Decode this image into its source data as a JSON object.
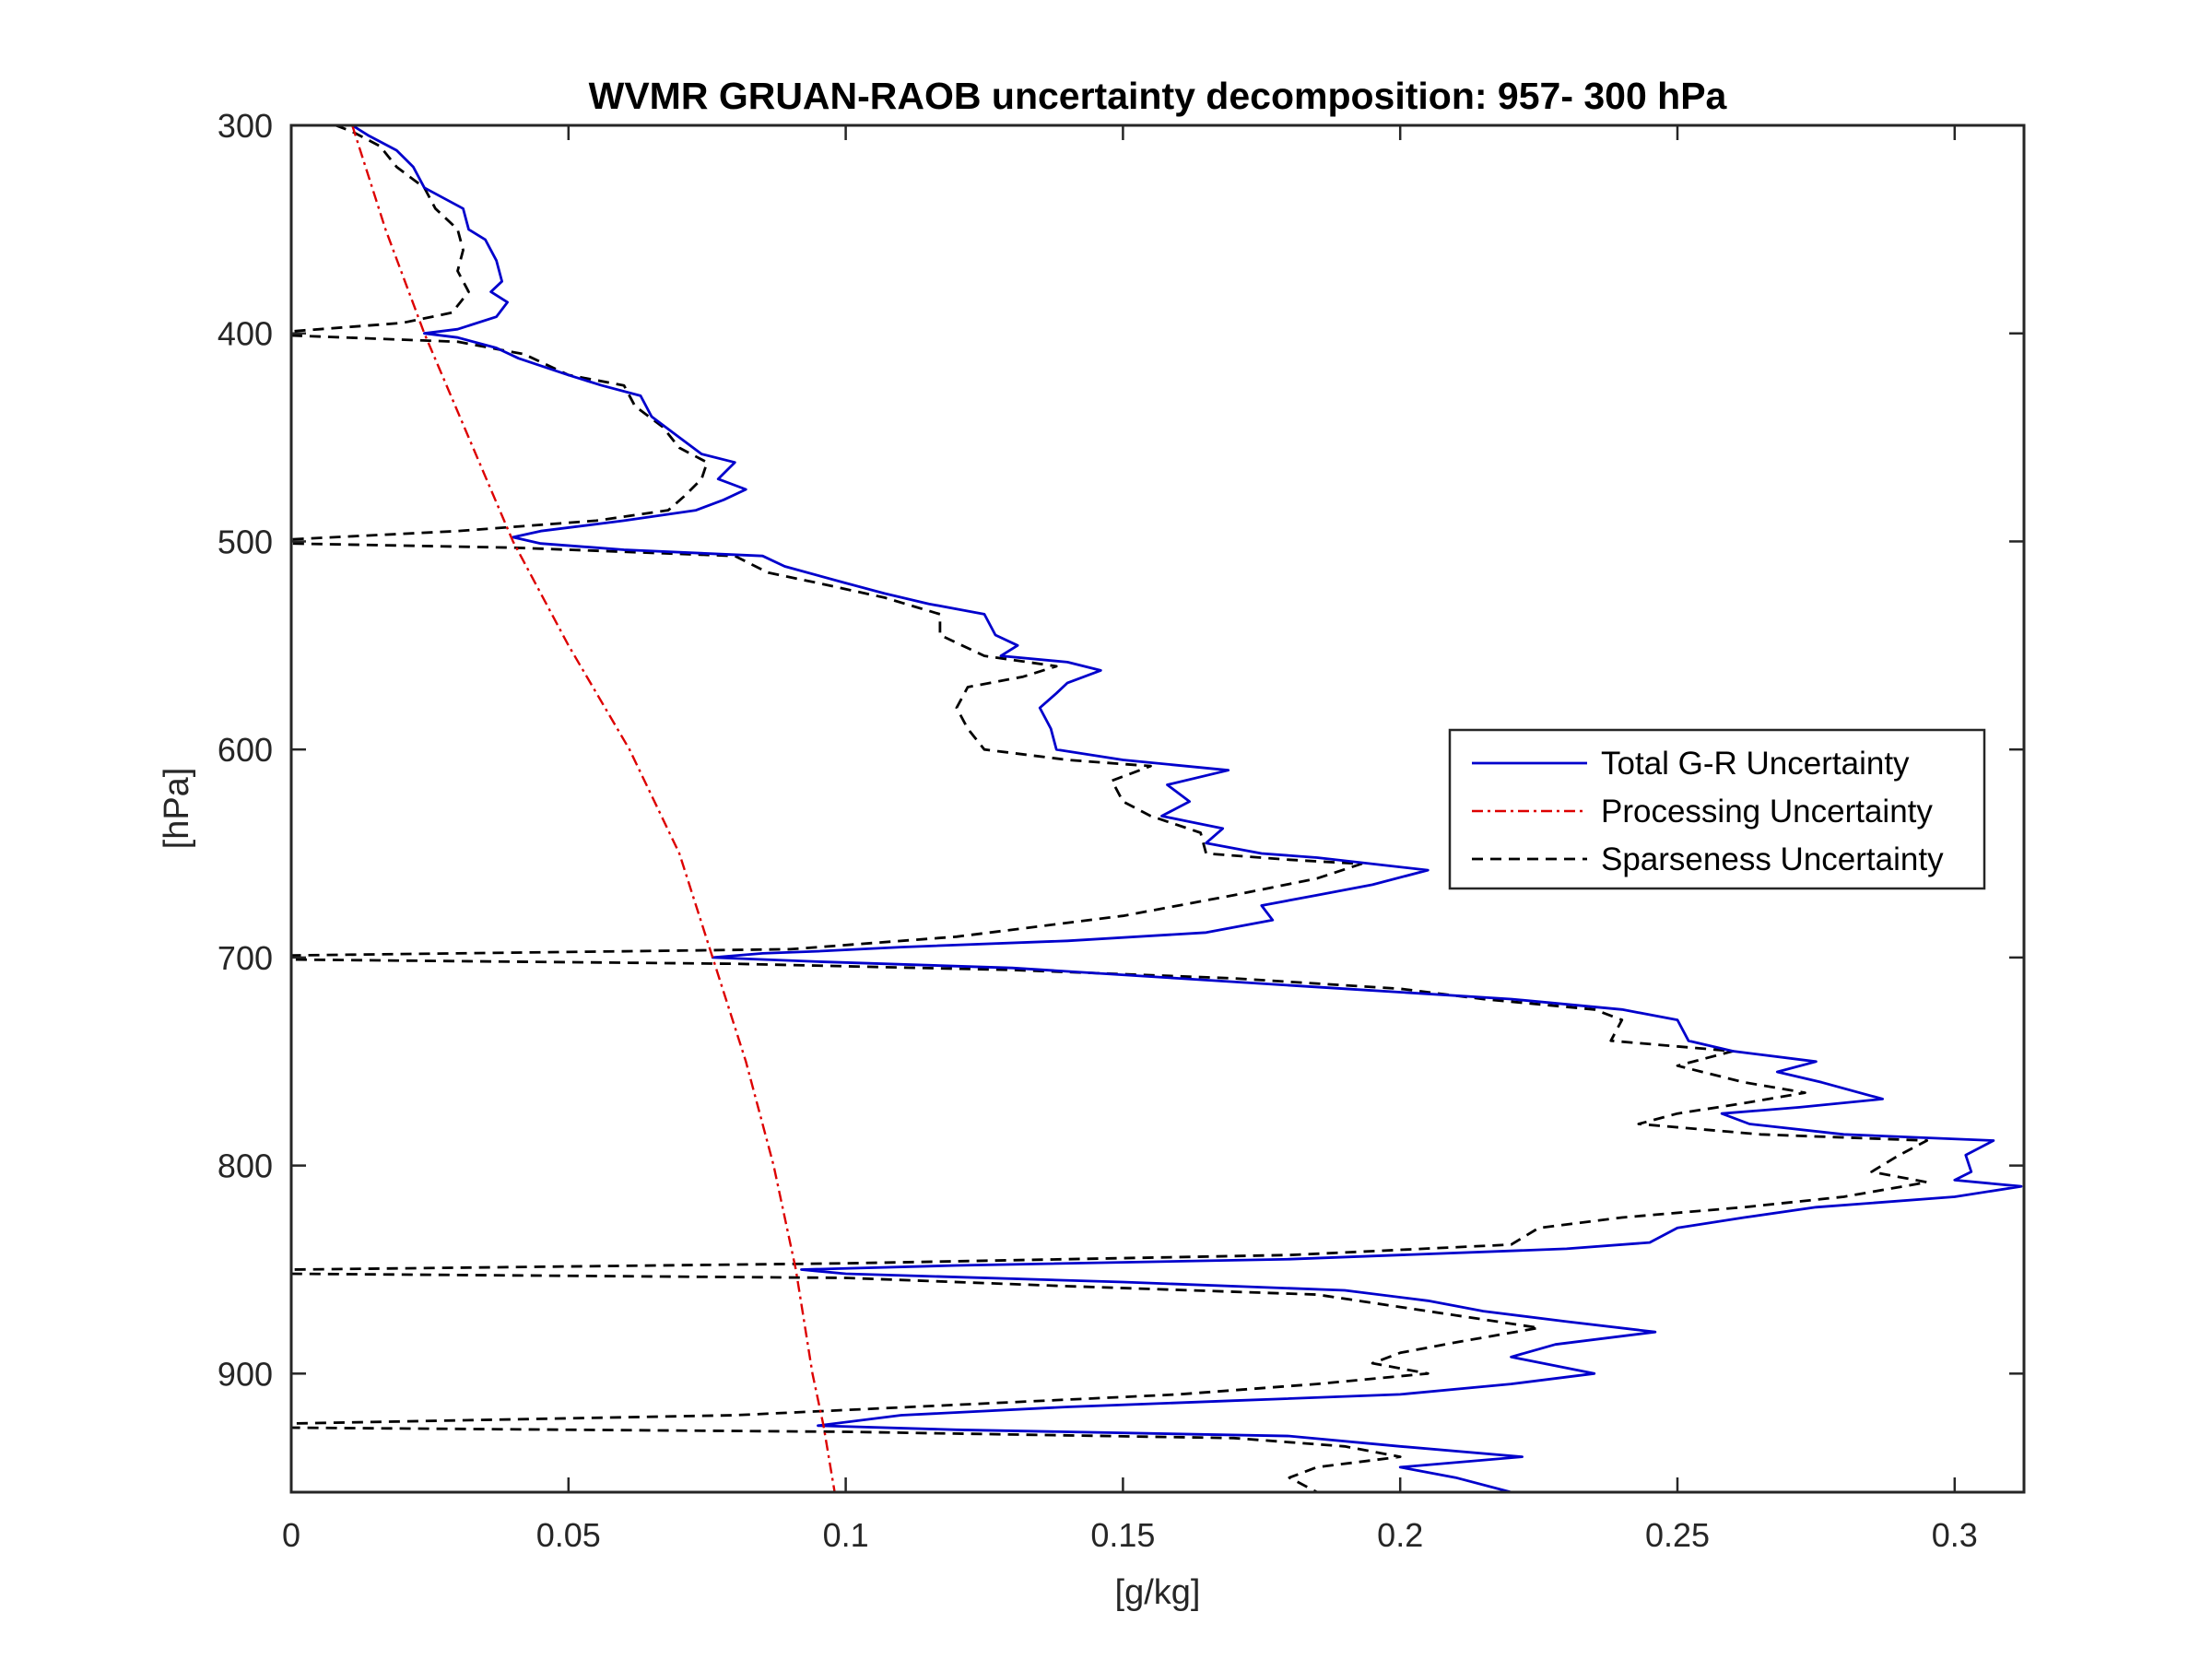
{
  "chart_data": {
    "type": "line",
    "title": "WVMR GRUAN-RAOB uncertainty decomposition:   957- 300 hPa",
    "xlabel": "[g/kg]",
    "ylabel": "[hPa]",
    "xlim": [
      0,
      0.3125
    ],
    "ylim": [
      300,
      957
    ],
    "y_reversed": true,
    "x_ticks": [
      0,
      0.05,
      0.1,
      0.15,
      0.2,
      0.25,
      0.3
    ],
    "x_tick_labels": [
      "0",
      "0.05",
      "0.1",
      "0.15",
      "0.2",
      "0.25",
      "0.3"
    ],
    "y_ticks": [
      300,
      400,
      500,
      600,
      700,
      800,
      900
    ],
    "y_tick_labels": [
      "300",
      "400",
      "500",
      "600",
      "700",
      "800",
      "900"
    ],
    "grid": false,
    "legend_position": "right",
    "series": [
      {
        "name": "Total G-R Uncertainty",
        "color": "#0000cc",
        "style": "solid",
        "points": [
          [
            0.011,
            300
          ],
          [
            0.014,
            305
          ],
          [
            0.019,
            312
          ],
          [
            0.022,
            320
          ],
          [
            0.024,
            330
          ],
          [
            0.031,
            340
          ],
          [
            0.032,
            350
          ],
          [
            0.035,
            355
          ],
          [
            0.037,
            365
          ],
          [
            0.038,
            375
          ],
          [
            0.036,
            380
          ],
          [
            0.039,
            385
          ],
          [
            0.037,
            392
          ],
          [
            0.03,
            398
          ],
          [
            0.024,
            400
          ],
          [
            0.03,
            402
          ],
          [
            0.037,
            407
          ],
          [
            0.041,
            412
          ],
          [
            0.05,
            420
          ],
          [
            0.056,
            425
          ],
          [
            0.063,
            430
          ],
          [
            0.065,
            440
          ],
          [
            0.07,
            450
          ],
          [
            0.074,
            458
          ],
          [
            0.08,
            462
          ],
          [
            0.077,
            470
          ],
          [
            0.082,
            475
          ],
          [
            0.078,
            480
          ],
          [
            0.073,
            485
          ],
          [
            0.06,
            490
          ],
          [
            0.045,
            495
          ],
          [
            0.04,
            498
          ],
          [
            0.045,
            501
          ],
          [
            0.06,
            504
          ],
          [
            0.085,
            507
          ],
          [
            0.089,
            512
          ],
          [
            0.1,
            520
          ],
          [
            0.107,
            525
          ],
          [
            0.115,
            530
          ],
          [
            0.125,
            535
          ],
          [
            0.127,
            545
          ],
          [
            0.131,
            550
          ],
          [
            0.128,
            555
          ],
          [
            0.14,
            558
          ],
          [
            0.146,
            562
          ],
          [
            0.14,
            568
          ],
          [
            0.138,
            573
          ],
          [
            0.135,
            580
          ],
          [
            0.137,
            590
          ],
          [
            0.138,
            600
          ],
          [
            0.15,
            605
          ],
          [
            0.169,
            610
          ],
          [
            0.158,
            617
          ],
          [
            0.162,
            625
          ],
          [
            0.157,
            632
          ],
          [
            0.168,
            638
          ],
          [
            0.165,
            645
          ],
          [
            0.175,
            650
          ],
          [
            0.185,
            652
          ],
          [
            0.205,
            658
          ],
          [
            0.195,
            665
          ],
          [
            0.185,
            670
          ],
          [
            0.175,
            675
          ],
          [
            0.177,
            682
          ],
          [
            0.165,
            688
          ],
          [
            0.14,
            692
          ],
          [
            0.11,
            695
          ],
          [
            0.095,
            697
          ],
          [
            0.085,
            698
          ],
          [
            0.076,
            700
          ],
          [
            0.095,
            702
          ],
          [
            0.13,
            705
          ],
          [
            0.16,
            710
          ],
          [
            0.19,
            715
          ],
          [
            0.22,
            720
          ],
          [
            0.24,
            725
          ],
          [
            0.25,
            730
          ],
          [
            0.252,
            740
          ],
          [
            0.26,
            745
          ],
          [
            0.275,
            750
          ],
          [
            0.268,
            755
          ],
          [
            0.276,
            760
          ],
          [
            0.287,
            768
          ],
          [
            0.272,
            772
          ],
          [
            0.258,
            775
          ],
          [
            0.263,
            780
          ],
          [
            0.28,
            785
          ],
          [
            0.307,
            788
          ],
          [
            0.302,
            795
          ],
          [
            0.303,
            803
          ],
          [
            0.3,
            807
          ],
          [
            0.312,
            810
          ],
          [
            0.3,
            815
          ],
          [
            0.275,
            820
          ],
          [
            0.262,
            825
          ],
          [
            0.25,
            830
          ],
          [
            0.245,
            837
          ],
          [
            0.23,
            840
          ],
          [
            0.18,
            845
          ],
          [
            0.12,
            848
          ],
          [
            0.092,
            850
          ],
          [
            0.1,
            852
          ],
          [
            0.15,
            856
          ],
          [
            0.19,
            860
          ],
          [
            0.205,
            865
          ],
          [
            0.215,
            870
          ],
          [
            0.23,
            875
          ],
          [
            0.246,
            880
          ],
          [
            0.228,
            886
          ],
          [
            0.22,
            892
          ],
          [
            0.235,
            900
          ],
          [
            0.22,
            905
          ],
          [
            0.2,
            910
          ],
          [
            0.17,
            913
          ],
          [
            0.14,
            916
          ],
          [
            0.11,
            920
          ],
          [
            0.095,
            925
          ],
          [
            0.12,
            927
          ],
          [
            0.18,
            930
          ],
          [
            0.2,
            935
          ],
          [
            0.222,
            940
          ],
          [
            0.2,
            945
          ],
          [
            0.21,
            950
          ],
          [
            0.22,
            957
          ]
        ]
      },
      {
        "name": "Processing Uncertainty",
        "color": "#dd0000",
        "style": "dashdot",
        "points": [
          [
            0.011,
            300
          ],
          [
            0.017,
            350
          ],
          [
            0.024,
            400
          ],
          [
            0.032,
            450
          ],
          [
            0.04,
            500
          ],
          [
            0.05,
            550
          ],
          [
            0.061,
            600
          ],
          [
            0.07,
            650
          ],
          [
            0.076,
            700
          ],
          [
            0.082,
            750
          ],
          [
            0.087,
            800
          ],
          [
            0.091,
            850
          ],
          [
            0.094,
            900
          ],
          [
            0.096,
            925
          ],
          [
            0.098,
            957
          ]
        ]
      },
      {
        "name": "Sparseness Uncertainty",
        "color": "#000000",
        "style": "dashed",
        "points": [
          [
            0.008,
            300
          ],
          [
            0.011,
            303
          ],
          [
            0.016,
            310
          ],
          [
            0.019,
            320
          ],
          [
            0.024,
            330
          ],
          [
            0.026,
            340
          ],
          [
            0.03,
            350
          ],
          [
            0.031,
            360
          ],
          [
            0.03,
            370
          ],
          [
            0.032,
            380
          ],
          [
            0.029,
            390
          ],
          [
            0.02,
            395
          ],
          [
            0.0,
            399
          ],
          [
            0.0,
            401
          ],
          [
            0.03,
            404
          ],
          [
            0.042,
            410
          ],
          [
            0.05,
            420
          ],
          [
            0.06,
            425
          ],
          [
            0.062,
            435
          ],
          [
            0.067,
            445
          ],
          [
            0.07,
            455
          ],
          [
            0.075,
            462
          ],
          [
            0.074,
            470
          ],
          [
            0.071,
            478
          ],
          [
            0.068,
            485
          ],
          [
            0.055,
            490
          ],
          [
            0.03,
            495
          ],
          [
            0.0,
            499
          ],
          [
            0.0,
            501
          ],
          [
            0.04,
            503
          ],
          [
            0.08,
            507
          ],
          [
            0.086,
            515
          ],
          [
            0.095,
            520
          ],
          [
            0.107,
            527
          ],
          [
            0.117,
            535
          ],
          [
            0.117,
            545
          ],
          [
            0.121,
            550
          ],
          [
            0.125,
            555
          ],
          [
            0.138,
            560
          ],
          [
            0.132,
            565
          ],
          [
            0.122,
            570
          ],
          [
            0.12,
            580
          ],
          [
            0.122,
            590
          ],
          [
            0.125,
            600
          ],
          [
            0.14,
            605
          ],
          [
            0.155,
            608
          ],
          [
            0.148,
            615
          ],
          [
            0.15,
            625
          ],
          [
            0.155,
            632
          ],
          [
            0.164,
            640
          ],
          [
            0.165,
            650
          ],
          [
            0.18,
            653
          ],
          [
            0.193,
            655
          ],
          [
            0.185,
            662
          ],
          [
            0.17,
            670
          ],
          [
            0.16,
            675
          ],
          [
            0.15,
            680
          ],
          [
            0.12,
            690
          ],
          [
            0.09,
            696
          ],
          [
            0.0,
            699
          ],
          [
            0.0,
            701
          ],
          [
            0.08,
            703
          ],
          [
            0.13,
            706
          ],
          [
            0.17,
            710
          ],
          [
            0.2,
            715
          ],
          [
            0.215,
            720
          ],
          [
            0.235,
            725
          ],
          [
            0.24,
            730
          ],
          [
            0.238,
            740
          ],
          [
            0.26,
            745
          ],
          [
            0.25,
            752
          ],
          [
            0.262,
            760
          ],
          [
            0.273,
            765
          ],
          [
            0.262,
            770
          ],
          [
            0.25,
            775
          ],
          [
            0.243,
            780
          ],
          [
            0.265,
            785
          ],
          [
            0.295,
            788
          ],
          [
            0.29,
            795
          ],
          [
            0.285,
            803
          ],
          [
            0.295,
            808
          ],
          [
            0.28,
            815
          ],
          [
            0.262,
            820
          ],
          [
            0.24,
            825
          ],
          [
            0.225,
            830
          ],
          [
            0.22,
            838
          ],
          [
            0.18,
            843
          ],
          [
            0.1,
            847
          ],
          [
            0.0,
            850
          ],
          [
            0.0,
            852
          ],
          [
            0.1,
            854
          ],
          [
            0.14,
            858
          ],
          [
            0.185,
            862
          ],
          [
            0.2,
            868
          ],
          [
            0.21,
            872
          ],
          [
            0.225,
            878
          ],
          [
            0.21,
            885
          ],
          [
            0.2,
            890
          ],
          [
            0.195,
            895
          ],
          [
            0.205,
            900
          ],
          [
            0.185,
            905
          ],
          [
            0.16,
            910
          ],
          [
            0.12,
            915
          ],
          [
            0.08,
            920
          ],
          [
            0.0,
            924
          ],
          [
            0.0,
            926
          ],
          [
            0.1,
            928
          ],
          [
            0.17,
            931
          ],
          [
            0.19,
            935
          ],
          [
            0.2,
            940
          ],
          [
            0.185,
            945
          ],
          [
            0.18,
            950
          ],
          [
            0.185,
            957
          ]
        ]
      }
    ]
  }
}
